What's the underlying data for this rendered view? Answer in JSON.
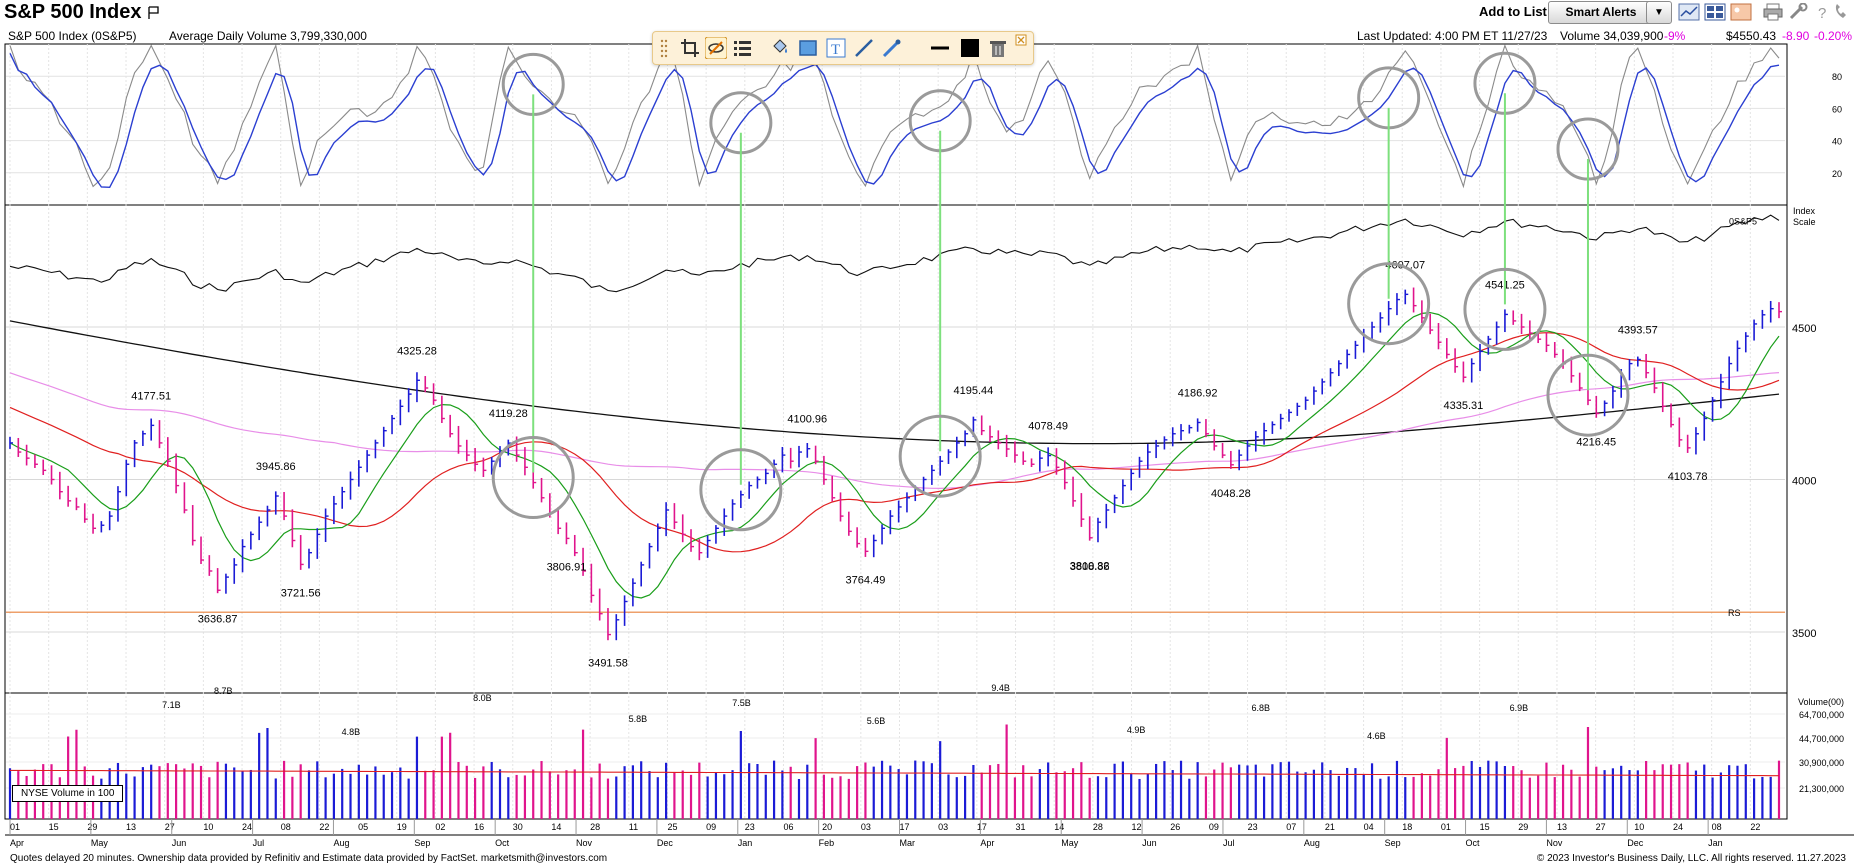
{
  "header": {
    "title": "S&P 500 Index",
    "add_to_list_label": "Add to List:",
    "smart_alerts_label": "Smart Alerts",
    "dropdown_glyph": "▼"
  },
  "info_bar": {
    "symbol": "S&P 500 Index   (0S&P5)",
    "avg_volume": "Average Daily Volume 3,799,330,000",
    "last_updated": "Last Updated: 4:00 PM ET 11/27/23",
    "volume": "Volume 34,039,900",
    "volume_change": "-9%",
    "price": "$4550.43",
    "change": "-8.90",
    "change_pct": "-0.20%"
  },
  "icons": {
    "flag": "flag-icon",
    "toolbar": [
      "line-chart-icon",
      "layout-icon",
      "image-icon",
      "print-icon",
      "tools-icon",
      "help-icon",
      "phone-icon"
    ],
    "drawing_tools": [
      "drag-handle-icon",
      "crop-icon",
      "hide-drawings-icon",
      "list-icon",
      "paint-bucket-icon",
      "rectangle-icon",
      "text-tool-icon",
      "line-tool-icon",
      "pen-tool-icon",
      "line-width-icon",
      "color-swatch-icon",
      "trash-icon",
      "close-icon"
    ]
  },
  "colors": {
    "up_bar": "#1b1bd6",
    "down_bar": "#e0148c",
    "ma_green": "#1a9e1a",
    "ma_red": "#e02020",
    "ma_pink": "#e88ee8",
    "ma_black": "#111111",
    "stoch_fast": "#2b3fd1",
    "stoch_slow": "#8a8a8a",
    "rs_line": "#111111",
    "rs_level": "#e8803a",
    "signal": "#7de07d",
    "circle": "#9a9a9a",
    "label_neg": "#e000e0"
  },
  "chart_data": {
    "type": "line",
    "price_axis": {
      "ticks": [
        3500,
        4000,
        4500
      ],
      "labels": [
        "3500",
        "4000",
        "4500"
      ],
      "range": [
        3300,
        4900
      ],
      "scale_label": "Index Scale",
      "rs_label": "0S&P5",
      "rs_level_label": "RS"
    },
    "stochastic_axis": {
      "ticks": [
        20,
        40,
        60,
        80
      ],
      "labels": [
        "20",
        "40",
        "60",
        "80"
      ],
      "range": [
        0,
        100
      ]
    },
    "volume_axis": {
      "title": "Volume(00)",
      "ticks": [
        64700000,
        44700000,
        30900000,
        21300000
      ],
      "labels": [
        "64,700,000",
        "44,700,000",
        "30,900,000",
        "21,300,000"
      ],
      "legend": "NYSE Volume in 100"
    },
    "x_axis": {
      "day_labels": [
        "01",
        "15",
        "29",
        "13",
        "27",
        "10",
        "24",
        "08",
        "22",
        "05",
        "19",
        "02",
        "16",
        "30",
        "14",
        "28",
        "11",
        "25",
        "09",
        "23",
        "06",
        "20",
        "03",
        "17",
        "03",
        "17",
        "31",
        "14",
        "28",
        "12",
        "26",
        "09",
        "23",
        "07",
        "21",
        "04",
        "18",
        "01",
        "15",
        "29",
        "13",
        "27",
        "10",
        "24",
        "08",
        "22"
      ],
      "month_labels": [
        "Apr",
        "May",
        "Jun",
        "Jul",
        "Aug",
        "Sep",
        "Oct",
        "Nov",
        "Dec",
        "Jan",
        "Feb",
        "Mar",
        "Apr",
        "May",
        "Jun",
        "Jul",
        "Aug",
        "Sep",
        "Oct",
        "Nov",
        "Dec",
        "Jan"
      ]
    },
    "price_points": [
      4120,
      4090,
      4070,
      4050,
      4030,
      4000,
      3960,
      3930,
      3910,
      3870,
      3840,
      3850,
      3880,
      3960,
      4050,
      4120,
      4150,
      4177.51,
      4120,
      4060,
      3980,
      3900,
      3800,
      3736,
      3700,
      3636.87,
      3680,
      3720,
      3780,
      3820,
      3860,
      3900,
      3945.86,
      3880,
      3800,
      3721.56,
      3760,
      3820,
      3880,
      3920,
      3960,
      4000,
      4040,
      4080,
      4120,
      4160,
      4200,
      4240,
      4280,
      4325.28,
      4300,
      4260,
      4200,
      4150,
      4110,
      4080,
      4050,
      4030,
      4060,
      4090,
      4119.28,
      4080,
      4040,
      3990,
      3940,
      3890,
      3840,
      3806.91,
      3760,
      3700,
      3620,
      3560,
      3491.58,
      3540,
      3600,
      3660,
      3720,
      3780,
      3840,
      3900,
      3860,
      3820,
      3780,
      3760,
      3800,
      3840,
      3880,
      3920,
      3950,
      3980,
      4000,
      4020,
      4050,
      4080,
      4060,
      4090,
      4100.96,
      4060,
      4000,
      3940,
      3880,
      3830,
      3790,
      3764.49,
      3800,
      3840,
      3880,
      3910,
      3940,
      3970,
      4000,
      4030,
      4060,
      4090,
      4120,
      4150,
      4195.44,
      4160,
      4140,
      4120,
      4100,
      4080,
      4060,
      4050,
      4070,
      4078.49,
      4040,
      3990,
      3930,
      3870,
      3808.86,
      3860,
      3900,
      3940,
      3980,
      4020,
      4060,
      4090,
      4110,
      4130,
      4150,
      4160,
      4170,
      4186.92,
      4150,
      4110,
      4080,
      4048.28,
      4080,
      4110,
      4140,
      4160,
      4180,
      4200,
      4220,
      4240,
      4260,
      4290,
      4320,
      4350,
      4380,
      4410,
      4440,
      4470,
      4500,
      4530,
      4560,
      4590,
      4607.07,
      4570,
      4530,
      4490,
      4450,
      4410,
      4370,
      4335.31,
      4380,
      4420,
      4460,
      4500,
      4541.25,
      4520,
      4500,
      4480,
      4460,
      4440,
      4410,
      4380,
      4340,
      4300,
      4260,
      4216.45,
      4250,
      4290,
      4340,
      4380,
      4393.57,
      4350,
      4300,
      4240,
      4180,
      4130,
      4103.78,
      4150,
      4200,
      4260,
      4320,
      4380,
      4430,
      4470,
      4510,
      4540,
      4560,
      4550.43
    ],
    "price_labels": [
      {
        "text": "3810.32",
        "value": 3810.32
      },
      {
        "text": "4177.51",
        "value": 4177.51
      },
      {
        "text": "3636.87",
        "value": 3636.87
      },
      {
        "text": "3945.86",
        "value": 3945.86
      },
      {
        "text": "3721.56",
        "value": 3721.56
      },
      {
        "text": "4325.28",
        "value": 4325.28
      },
      {
        "text": "4119.28",
        "value": 4119.28
      },
      {
        "text": "3806.91",
        "value": 3806.91
      },
      {
        "text": "3491.58",
        "value": 3491.58
      },
      {
        "text": "4100.96",
        "value": 4100.96
      },
      {
        "text": "3764.49",
        "value": 3764.49
      },
      {
        "text": "4195.44",
        "value": 4195.44
      },
      {
        "text": "4078.49",
        "value": 4078.49
      },
      {
        "text": "3808.86",
        "value": 3808.86
      },
      {
        "text": "4186.92",
        "value": 4186.92
      },
      {
        "text": "4048.28",
        "value": 4048.28
      },
      {
        "text": "4607.07",
        "value": 4607.07
      },
      {
        "text": "4541.25",
        "value": 4541.25
      },
      {
        "text": "4335.31",
        "value": 4335.31
      },
      {
        "text": "4393.57",
        "value": 4393.57
      },
      {
        "text": "4216.45",
        "value": 4216.45
      },
      {
        "text": "4103.78",
        "value": 4103.78
      }
    ],
    "volume_labels": [
      "7.1B",
      "8.7B",
      "4.8B",
      "8.0B",
      "5.8B",
      "7.5B",
      "5.6B",
      "9.4B",
      "4.9B",
      "6.8B",
      "4.6B",
      "6.9B"
    ],
    "rs_level_value": 3565
  },
  "footer": {
    "left": "Quotes delayed 20 minutes. Ownership data provided by Refinitiv and Estimate data provided by FactSet. marketsmith@investors.com",
    "right": "© 2023 Investor's Business Daily, LLC. All rights reserved.      11.27.2023"
  }
}
